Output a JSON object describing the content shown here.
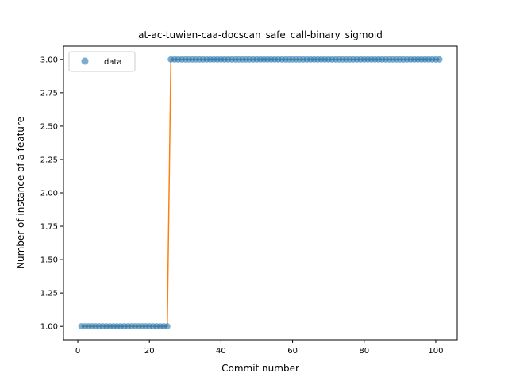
{
  "chart_data": {
    "type": "scatter",
    "title": "at-ac-tuwien-caa-docscan_safe_call-binary_sigmoid",
    "xlabel": "Commit number",
    "ylabel": "Number of instance of a feature",
    "xlim": [
      -4,
      106
    ],
    "ylim": [
      0.9,
      3.1
    ],
    "x_ticks": [
      0,
      20,
      40,
      60,
      80,
      100
    ],
    "x_tick_labels": [
      "0",
      "20",
      "40",
      "60",
      "80",
      "100"
    ],
    "y_ticks": [
      1.0,
      1.25,
      1.5,
      1.75,
      2.0,
      2.25,
      2.5,
      2.75,
      3.0
    ],
    "y_tick_labels": [
      "1.00",
      "1.25",
      "1.50",
      "1.75",
      "2.00",
      "2.25",
      "2.50",
      "2.75",
      "3.00"
    ],
    "grid": false,
    "legend": {
      "position": "top-left",
      "entries": [
        "data"
      ]
    },
    "series": [
      {
        "name": "data",
        "kind": "points",
        "color": "#1f77b4",
        "x": [
          1,
          2,
          3,
          4,
          5,
          6,
          7,
          8,
          9,
          10,
          11,
          12,
          13,
          14,
          15,
          16,
          17,
          18,
          19,
          20,
          21,
          22,
          23,
          24,
          25,
          26,
          27,
          28,
          29,
          30,
          31,
          32,
          33,
          34,
          35,
          36,
          37,
          38,
          39,
          40,
          41,
          42,
          43,
          44,
          45,
          46,
          47,
          48,
          49,
          50,
          51,
          52,
          53,
          54,
          55,
          56,
          57,
          58,
          59,
          60,
          61,
          62,
          63,
          64,
          65,
          66,
          67,
          68,
          69,
          70,
          71,
          72,
          73,
          74,
          75,
          76,
          77,
          78,
          79,
          80,
          81,
          82,
          83,
          84,
          85,
          86,
          87,
          88,
          89,
          90,
          91,
          92,
          93,
          94,
          95,
          96,
          97,
          98,
          99,
          100,
          101
        ],
        "y": [
          1,
          1,
          1,
          1,
          1,
          1,
          1,
          1,
          1,
          1,
          1,
          1,
          1,
          1,
          1,
          1,
          1,
          1,
          1,
          1,
          1,
          1,
          1,
          1,
          1,
          3,
          3,
          3,
          3,
          3,
          3,
          3,
          3,
          3,
          3,
          3,
          3,
          3,
          3,
          3,
          3,
          3,
          3,
          3,
          3,
          3,
          3,
          3,
          3,
          3,
          3,
          3,
          3,
          3,
          3,
          3,
          3,
          3,
          3,
          3,
          3,
          3,
          3,
          3,
          3,
          3,
          3,
          3,
          3,
          3,
          3,
          3,
          3,
          3,
          3,
          3,
          3,
          3,
          3,
          3,
          3,
          3,
          3,
          3,
          3,
          3,
          3,
          3,
          3,
          3,
          3,
          3,
          3,
          3,
          3,
          3,
          3,
          3,
          3,
          3,
          3
        ]
      },
      {
        "kind": "line",
        "color": "#ff7f0e",
        "x": [
          1,
          25,
          26,
          101
        ],
        "y": [
          1,
          1,
          3,
          3
        ]
      }
    ]
  }
}
